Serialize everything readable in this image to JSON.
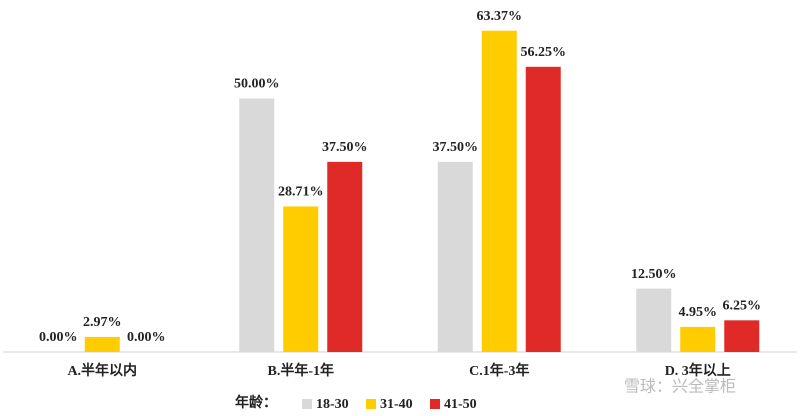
{
  "chart_data": {
    "type": "bar",
    "categories": [
      "A.半年以内",
      "B.半年-1年",
      "C.1年-3年",
      "D. 3年以上"
    ],
    "series": [
      {
        "name": "18-30",
        "color": "#d9d9d9",
        "values": [
          0,
          50,
          37.5,
          12.5
        ],
        "value_labels": [
          "0.00%",
          "50.00%",
          "37.50%",
          "12.50%"
        ]
      },
      {
        "name": "31-40",
        "color": "#ffcc00",
        "values": [
          2.97,
          28.71,
          63.37,
          4.95
        ],
        "value_labels": [
          "2.97%",
          "28.71%",
          "63.37%",
          "4.95%"
        ]
      },
      {
        "name": "41-50",
        "color": "#e02a27",
        "values": [
          0,
          37.5,
          56.25,
          6.25
        ],
        "value_labels": [
          "0.00%",
          "37.50%",
          "56.25%",
          "6.25%"
        ]
      }
    ],
    "legend_title": "年龄：",
    "watermark": "雪球：兴全掌柜"
  }
}
